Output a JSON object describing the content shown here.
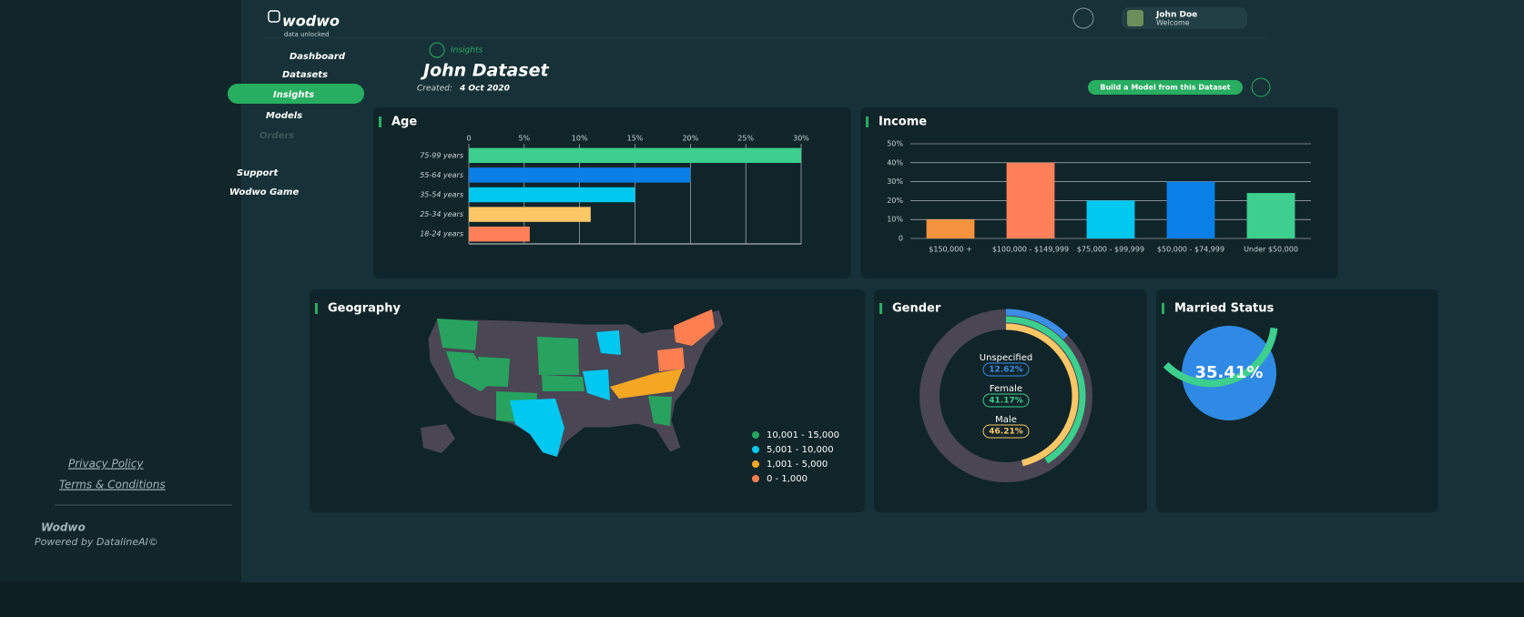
{
  "sidebar": {
    "brand": "wodwo",
    "tagline": "data unlocked",
    "nav": [
      "Dashboard",
      "Datasets",
      "Insights",
      "Models",
      "Orders"
    ],
    "extra": [
      "Support",
      "Wodwo Game"
    ],
    "links": [
      "Privacy Policy",
      "Terms & Conditions"
    ],
    "footer_title": "Wodwo",
    "footer_note": "Powered by DatalineAI©"
  },
  "header": {
    "user_name": "John Doe",
    "user_greeting": "Welcome"
  },
  "page": {
    "breadcrumb": "Insights",
    "title": "John Dataset",
    "created_label": "Created:",
    "created_date": "4 Oct 2020",
    "action": "Build a Model from this Dataset"
  },
  "chart_data": [
    {
      "type": "hbar",
      "title": "Age",
      "categories": [
        "75-99 years",
        "55-64 years",
        "35-54 years",
        "25-34 years",
        "18-24 years"
      ],
      "values": [
        30,
        20,
        15,
        11,
        5.5
      ],
      "colors": [
        "#3ccf8e",
        "#0a7fe8",
        "#00c8f0",
        "#fdc765",
        "#ff8059"
      ],
      "xlim": [
        0,
        30
      ],
      "xticks": [
        0,
        {
          "value": 5,
          "label": "5%"
        },
        {
          "value": 10,
          "label": "10%"
        },
        {
          "value": 15,
          "label": "15%"
        },
        {
          "value": 20,
          "label": "20%"
        },
        {
          "value": 25,
          "label": "25%"
        },
        {
          "value": 30,
          "label": "30%"
        }
      ],
      "grid": true
    },
    {
      "type": "bar",
      "title": "Income",
      "categories": [
        "$150,000 +",
        "$100,000 - $149,999",
        "$75,000 - $99,999",
        "$50,000 - $74,999",
        "Under $50,000"
      ],
      "values": [
        10,
        40,
        20,
        30,
        24
      ],
      "colors": [
        "#f5923e",
        "#ff8059",
        "#00c8f0",
        "#0a7fe8",
        "#3ccf8e"
      ],
      "ylim": [
        0,
        50
      ],
      "yticks": [
        0,
        {
          "value": 10,
          "label": "10%"
        },
        {
          "value": 20,
          "label": "20%"
        },
        {
          "value": 30,
          "label": "30%"
        },
        {
          "value": 40,
          "label": "40%"
        },
        {
          "value": 50,
          "label": "50%"
        }
      ],
      "grid": true
    },
    {
      "type": "map",
      "title": "Geography",
      "legend": [
        {
          "label": "10,001 - 15,000",
          "color": "#27a35f"
        },
        {
          "label": "5,001 - 10,000",
          "color": "#00c8f0"
        },
        {
          "label": "1,001 - 5,000",
          "color": "#f5a623"
        },
        {
          "label": "0 - 1,000",
          "color": "#ff7f50"
        }
      ]
    },
    {
      "type": "donut",
      "title": "Gender",
      "categories": [
        "Unspecified",
        "Female",
        "Male"
      ],
      "values": [
        12.62,
        41.17,
        46.21
      ],
      "value_labels": [
        "12.62%",
        "41.17%",
        "46.21%"
      ],
      "colors": [
        "#3a8ee6",
        "#3ccf8e",
        "#fdc765"
      ]
    },
    {
      "type": "gauge",
      "title": "Married Status",
      "value": 35.41,
      "value_label": "35.41%",
      "color": "#3ccf8e"
    }
  ]
}
